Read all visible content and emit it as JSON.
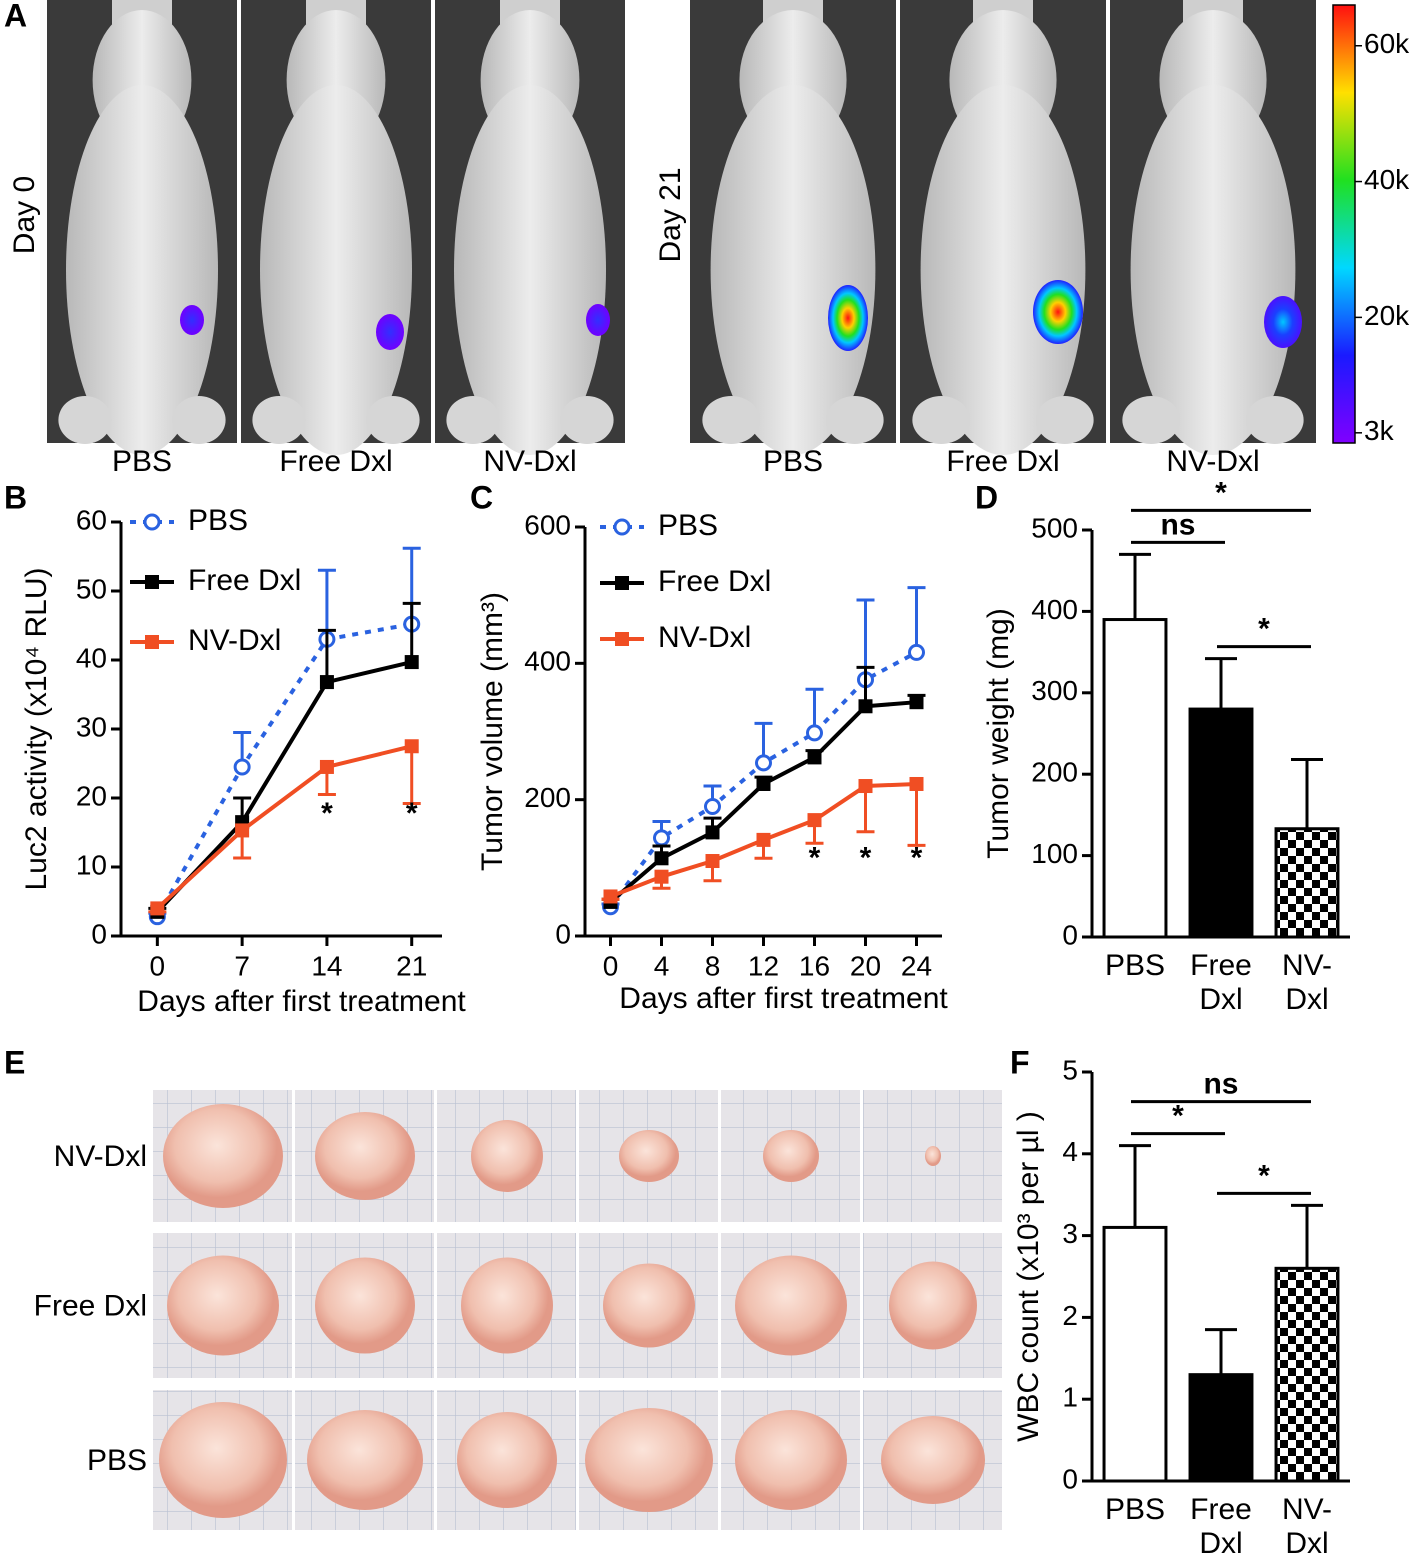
{
  "panel_a": {
    "label": "A",
    "day_labels": [
      "Day 0",
      "Day 21"
    ],
    "groups": [
      "PBS",
      "Free Dxl",
      "NV-Dxl"
    ],
    "colorbar": {
      "lim": [
        1500,
        66000
      ],
      "ticks": [
        {
          "value": 3000,
          "label": "3k"
        },
        {
          "value": 20000,
          "label": "20k"
        },
        {
          "value": 40000,
          "label": "40k"
        },
        {
          "value": 60000,
          "label": "60k"
        }
      ]
    }
  },
  "panel_e": {
    "label": "E",
    "rows": [
      "NV-Dxl",
      "Free Dxl",
      "PBS"
    ]
  },
  "chart_data": [
    {
      "type": "line",
      "panel_label": "B",
      "x_label": "Days after first treatment",
      "y_label": "Luc2 activity (x10⁴ RLU)",
      "x": [
        0,
        7,
        14,
        21
      ],
      "xlim": [
        -3,
        23.5
      ],
      "xticks": [
        0,
        7,
        14,
        21
      ],
      "ylim": [
        0,
        60
      ],
      "yticks": [
        0,
        10,
        20,
        30,
        40,
        50,
        60
      ],
      "legend": "upper left",
      "series": [
        {
          "name": "PBS",
          "color": "#2a62e0",
          "linestyle": "dotted",
          "marker": "open-circle",
          "error_direction": "up",
          "values": [
            2.8,
            24.5,
            43,
            45.2
          ],
          "errors": [
            0.5,
            5,
            10,
            11
          ]
        },
        {
          "name": "Free Dxl",
          "color": "#000000",
          "linestyle": "solid",
          "marker": "square",
          "error_direction": "up",
          "values": [
            3.5,
            16.5,
            36.8,
            39.7
          ],
          "errors": [
            0.5,
            3.5,
            7.5,
            8.5
          ]
        },
        {
          "name": "NV-Dxl",
          "color": "#f04e23",
          "linestyle": "solid",
          "marker": "square",
          "error_direction": "down",
          "values": [
            4,
            15.3,
            24.5,
            27.5
          ],
          "errors": [
            0.5,
            4,
            4,
            8.3
          ]
        }
      ],
      "annotations": [
        {
          "text": "*",
          "x": 14,
          "y": 17.5
        },
        {
          "text": "*",
          "x": 21,
          "y": 17.5
        }
      ]
    },
    {
      "type": "line",
      "panel_label": "C",
      "x_label": "Days after first treatment",
      "y_label": "Tumor volume (mm³)",
      "x": [
        0,
        4,
        8,
        12,
        16,
        20,
        24
      ],
      "xlim": [
        -2,
        26
      ],
      "xticks": [
        0,
        4,
        8,
        12,
        16,
        20,
        24
      ],
      "ylim": [
        0,
        600
      ],
      "yticks": [
        0,
        200,
        400,
        600
      ],
      "legend": "upper left",
      "series": [
        {
          "name": "PBS",
          "color": "#2a62e0",
          "linestyle": "dotted",
          "marker": "open-circle",
          "error_direction": "up",
          "values": [
            43,
            144,
            190,
            254,
            298,
            376,
            416
          ],
          "errors": [
            4,
            24,
            30,
            58,
            64,
            117,
            95
          ]
        },
        {
          "name": "Free Dxl",
          "color": "#000000",
          "linestyle": "solid",
          "marker": "square",
          "error_direction": "up",
          "values": [
            50,
            114,
            152,
            223,
            262,
            337,
            343
          ],
          "errors": [
            4,
            18,
            21,
            10,
            10,
            57,
            10
          ]
        },
        {
          "name": "NV-Dxl",
          "color": "#f04e23",
          "linestyle": "solid",
          "marker": "square",
          "error_direction": "down",
          "values": [
            58,
            87,
            110,
            141,
            170,
            220,
            223
          ],
          "errors": [
            4,
            17,
            29,
            27,
            34,
            67,
            90
          ]
        }
      ],
      "annotations": [
        {
          "text": "*",
          "x": 16,
          "y": 112
        },
        {
          "text": "*",
          "x": 20,
          "y": 112
        },
        {
          "text": "*",
          "x": 24,
          "y": 112
        }
      ]
    },
    {
      "type": "bar",
      "panel_label": "D",
      "y_label": "Tumor weight (mg)",
      "categories": [
        "PBS",
        "Free\nDxl",
        "NV-\nDxl"
      ],
      "values": [
        390,
        280,
        133
      ],
      "errors": [
        80,
        62,
        85
      ],
      "fills": [
        "#ffffff",
        "#000000",
        "checker"
      ],
      "ylim": [
        0,
        500
      ],
      "yticks": [
        0,
        100,
        200,
        300,
        400,
        500
      ],
      "significance": [
        {
          "from": 0,
          "to": 1,
          "label": "ns"
        },
        {
          "from": 0,
          "to": 2,
          "label": "*"
        },
        {
          "from": 1,
          "to": 2,
          "label": "*"
        }
      ]
    },
    {
      "type": "bar",
      "panel_label": "F",
      "y_label": "WBC count (x10³ per µl )",
      "categories": [
        "PBS",
        "Free\nDxl",
        "NV-\nDxl"
      ],
      "values": [
        3.1,
        1.3,
        2.6
      ],
      "errors": [
        1.0,
        0.55,
        0.77
      ],
      "fills": [
        "#ffffff",
        "#000000",
        "checker"
      ],
      "ylim": [
        0,
        5
      ],
      "yticks": [
        0,
        1,
        2,
        3,
        4,
        5
      ],
      "significance": [
        {
          "from": 0,
          "to": 1,
          "label": "*"
        },
        {
          "from": 0,
          "to": 2,
          "label": "ns"
        },
        {
          "from": 1,
          "to": 2,
          "label": "*"
        }
      ]
    }
  ]
}
